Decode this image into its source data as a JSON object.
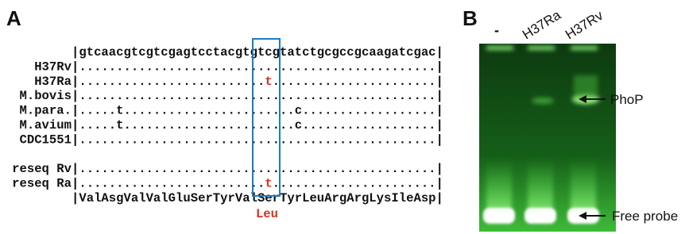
{
  "panel_a": {
    "label": "A",
    "header": "|gtcaacgtcgtcgagtcctacgtgtcgtatctgcgccgcaagatcgac|",
    "rows": [
      {
        "name": "H37Rv",
        "segments": [
          {
            "text": "|................................................|"
          }
        ]
      },
      {
        "name": "H37Ra",
        "segments": [
          {
            "text": "|........................."
          },
          {
            "text": "t",
            "color": "#e0301e"
          },
          {
            "text": "......................|"
          }
        ]
      },
      {
        "name": "M.bovis",
        "segments": [
          {
            "text": "|................................................|"
          }
        ]
      },
      {
        "name": "M.para.",
        "segments": [
          {
            "text": "|.....t.......................c..................|"
          }
        ]
      },
      {
        "name": "M.avium",
        "segments": [
          {
            "text": "|.....t.......................c..................|"
          }
        ]
      },
      {
        "name": "CDC1551",
        "segments": [
          {
            "text": "|................................................|"
          }
        ]
      },
      {
        "name": "reseq Rv",
        "segments": [
          {
            "text": "|................................................|"
          }
        ]
      },
      {
        "name": "reseq Ra",
        "segments": [
          {
            "text": "|........................."
          },
          {
            "text": "t",
            "color": "#e0301e"
          },
          {
            "text": "......................|"
          }
        ]
      }
    ],
    "translation": "|ValAsgValValGluSerTyrValSerTyrLeuArgArgLysIleAsp|",
    "substitution": {
      "text": "Leu",
      "color": "#e0301e"
    }
  },
  "panel_b": {
    "label": "B",
    "lanes": [
      "-",
      "H37Ra",
      "H37Rv"
    ],
    "annotations": [
      "PhoP",
      "Free probe"
    ]
  }
}
